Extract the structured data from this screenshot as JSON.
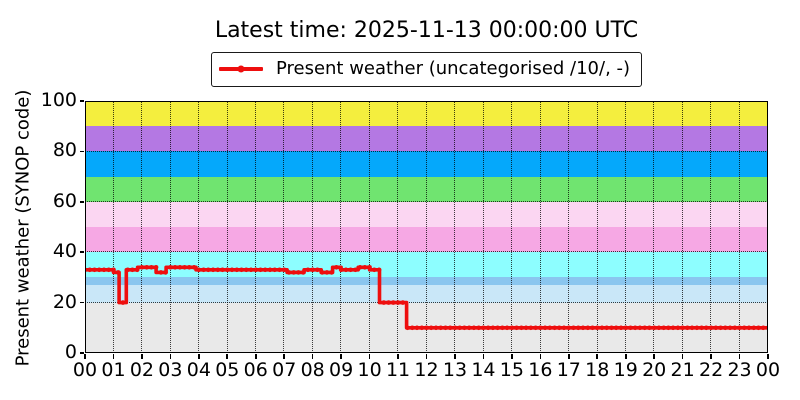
{
  "title": "Latest time: 2025-11-13 00:00:00 UTC",
  "chart_data": {
    "type": "line",
    "title": "Latest time: 2025-11-13 00:00:00 UTC",
    "xlabel": "",
    "ylabel": "Present weather (SYNOP code)",
    "ylim": [
      0,
      100
    ],
    "xlim_hours": [
      0,
      24
    ],
    "grid": "dotted",
    "y_ticks": [
      0,
      20,
      40,
      60,
      80,
      100
    ],
    "x_tick_labels": [
      "00",
      "01",
      "02",
      "03",
      "04",
      "05",
      "06",
      "07",
      "08",
      "09",
      "10",
      "11",
      "12",
      "13",
      "14",
      "15",
      "16",
      "17",
      "18",
      "19",
      "20",
      "21",
      "22",
      "23",
      "00"
    ],
    "legend": {
      "position": "top-center",
      "entries": [
        {
          "label": "Present weather (uncategorised /10/, -)",
          "color": "#ee0e0e",
          "marker": "dot"
        }
      ]
    },
    "background_bands": [
      {
        "from": 0,
        "to": 20,
        "color": "#e9e9e9"
      },
      {
        "from": 20,
        "to": 27,
        "color": "#c9e7f8"
      },
      {
        "from": 27,
        "to": 30,
        "color": "#8ac6ef"
      },
      {
        "from": 30,
        "to": 40,
        "color": "#8dfeff"
      },
      {
        "from": 40,
        "to": 50,
        "color": "#f6a8e4"
      },
      {
        "from": 50,
        "to": 60,
        "color": "#fbd6f2"
      },
      {
        "from": 60,
        "to": 70,
        "color": "#70e470"
      },
      {
        "from": 70,
        "to": 80,
        "color": "#05a8fb"
      },
      {
        "from": 80,
        "to": 90,
        "color": "#b478e3"
      },
      {
        "from": 90,
        "to": 100,
        "color": "#f4ee3e"
      }
    ],
    "series": [
      {
        "name": "Present weather (uncategorised /10/, -)",
        "color": "#ee0e0e",
        "step": "post",
        "points_hour_value": [
          [
            0.0,
            33
          ],
          [
            1.0,
            32
          ],
          [
            1.2,
            20
          ],
          [
            1.45,
            33
          ],
          [
            1.85,
            34
          ],
          [
            2.5,
            32
          ],
          [
            2.85,
            34
          ],
          [
            3.9,
            33
          ],
          [
            7.1,
            32
          ],
          [
            7.7,
            33
          ],
          [
            8.3,
            32
          ],
          [
            8.7,
            34
          ],
          [
            9.0,
            33
          ],
          [
            9.6,
            34
          ],
          [
            10.0,
            33
          ],
          [
            10.35,
            20
          ],
          [
            11.3,
            10
          ],
          [
            24.0,
            10
          ]
        ]
      }
    ]
  }
}
